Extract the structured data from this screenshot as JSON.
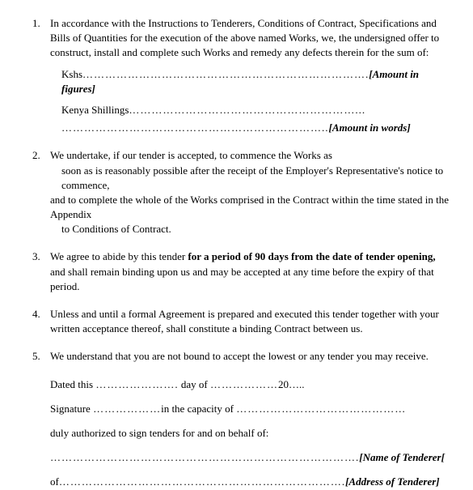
{
  "items": [
    {
      "para": "In accordance with the Instructions to Tenderers, Conditions of Contract, Specifications and Bills of Quantities for the execution of the above named Works, we, the undersigned offer to construct, install and complete such Works and remedy any defects therein for the sum of:",
      "kshs_label": "Kshs",
      "kshs_dots": "………………………………………………………………….",
      "amount_figures": "[Amount in figures]",
      "kenya_label": "Kenya Shillings",
      "kenya_dots": "……………………………………………………...",
      "blank_dots": "……………………………………………………………..",
      "amount_words": "[Amount in words]"
    },
    {
      "line1": "We undertake, if our tender is accepted, to commence the Works as",
      "line2": "soon as is reasonably possible after the receipt of the Employer's Representative's notice to commence,",
      "line3": "and to complete the whole of the Works comprised in the Contract within the time stated in the Appendix",
      "line4": "to Conditions of Contract."
    },
    {
      "pre": "We agree to abide by this tender ",
      "bold": "for a period of 90 days from the date of tender opening,",
      "post": " and shall remain binding upon us and may be accepted at any time before the expiry of that period."
    },
    {
      "text": "Unless and until a formal Agreement is prepared and executed this tender together with your written acceptance thereof, shall constitute a binding Contract between us."
    },
    {
      "text": "We understand that you are not bound to accept the lowest or any tender you may receive."
    }
  ],
  "sig": {
    "dated_pre": "Dated this ",
    "dated_dots1": "………………….",
    "day_of": " day of ",
    "dated_dots2": "………………",
    "year": "20…..",
    "signature_label": "Signature ",
    "sig_dots1": "………………",
    "capacity": "in the capacity of ",
    "sig_dots2": "………………………………………",
    "auth": "duly authorized to sign tenders for and on behalf of:",
    "name_dots": "……………………………………………………………………….",
    "name_label": "[Name of  Tenderer[",
    "of": "of",
    "addr_dots": "………………………………………………………………….",
    "addr_label": "[Address of Tenderer]"
  }
}
